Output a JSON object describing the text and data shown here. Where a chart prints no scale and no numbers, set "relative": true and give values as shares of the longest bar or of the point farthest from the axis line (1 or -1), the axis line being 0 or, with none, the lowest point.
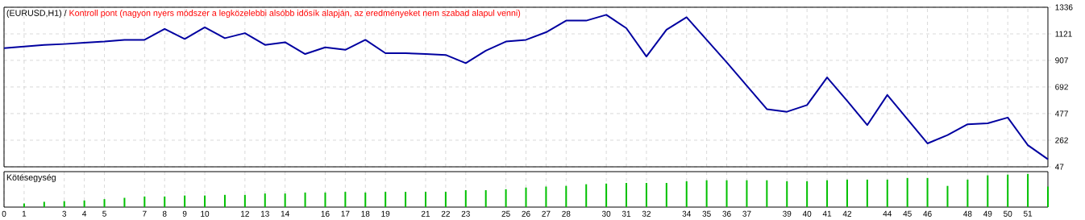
{
  "chart_data": [
    {
      "type": "line",
      "title": "(EURUSD,H1) /",
      "subtitle": "Kontroll pont (nagyon nyers módszer a legközelebbi alsóbb idősík alapján, az eredményeket nem szabad alapul venni)",
      "x": [
        0,
        1,
        2,
        3,
        4,
        5,
        6,
        7,
        8,
        9,
        10,
        11,
        12,
        13,
        14,
        15,
        16,
        17,
        18,
        19,
        20,
        21,
        22,
        23,
        24,
        25,
        26,
        27,
        28,
        29,
        30,
        31,
        32,
        33,
        34,
        35,
        36,
        37,
        38,
        39,
        40,
        41,
        42,
        43,
        44,
        45,
        46,
        47,
        48,
        49,
        50,
        51,
        52
      ],
      "series": [
        {
          "color": "#0000a0",
          "values": [
            1005,
            1019,
            1032,
            1039,
            1049,
            1059,
            1073,
            1073,
            1161,
            1080,
            1174,
            1086,
            1127,
            1032,
            1053,
            958,
            1012,
            992,
            1073,
            965,
            965,
            958,
            951,
            884,
            985,
            1059,
            1073,
            1134,
            1228,
            1228,
            1275,
            1167,
            938,
            1154,
            1255,
            1073,
            891,
            702,
            513,
            492,
            546,
            769,
            580,
            384,
            627,
            432,
            236,
            303,
            391,
            398,
            445,
            222,
            108
          ]
        }
      ],
      "xlim": [
        0,
        52
      ],
      "xticks": [
        0,
        1,
        3,
        4,
        5,
        7,
        8,
        9,
        10,
        12,
        13,
        14,
        16,
        17,
        18,
        19,
        21,
        22,
        23,
        25,
        26,
        27,
        28,
        30,
        31,
        32,
        34,
        35,
        36,
        37,
        39,
        40,
        41,
        42,
        44,
        45,
        46,
        48,
        49,
        50,
        51
      ],
      "ylim": [
        47,
        1336
      ],
      "yticks": [
        47,
        262,
        477,
        692,
        907,
        1121,
        1336
      ],
      "grid": true,
      "tick_labels": "y",
      "marker": "none",
      "line_style": "solid"
    },
    {
      "type": "bar",
      "title": "Kötésegység",
      "relative": true,
      "x": [
        1,
        2,
        3,
        4,
        5,
        6,
        7,
        8,
        9,
        10,
        11,
        12,
        13,
        14,
        15,
        16,
        17,
        18,
        19,
        20,
        21,
        22,
        23,
        24,
        25,
        26,
        27,
        28,
        29,
        30,
        31,
        32,
        33,
        34,
        35,
        36,
        37,
        38,
        39,
        40,
        41,
        42,
        43,
        44,
        45,
        46,
        47,
        48,
        49,
        50,
        51,
        52
      ],
      "series": [
        {
          "color": "#00c000",
          "values": [
            0.11,
            0.16,
            0.18,
            0.2,
            0.24,
            0.28,
            0.32,
            0.32,
            0.35,
            0.35,
            0.37,
            0.37,
            0.41,
            0.41,
            0.44,
            0.44,
            0.46,
            0.44,
            0.46,
            0.46,
            0.46,
            0.46,
            0.51,
            0.51,
            0.54,
            0.59,
            0.62,
            0.64,
            0.69,
            0.71,
            0.73,
            0.73,
            0.73,
            0.78,
            0.81,
            0.81,
            0.81,
            0.81,
            0.78,
            0.78,
            0.81,
            0.83,
            0.83,
            0.83,
            0.88,
            0.88,
            0.64,
            0.83,
            0.96,
            0.98,
            1,
            0.62
          ]
        }
      ],
      "xlim": [
        0,
        52
      ],
      "xticks": [
        0,
        1,
        3,
        4,
        5,
        7,
        8,
        9,
        10,
        12,
        13,
        14,
        16,
        17,
        18,
        19,
        21,
        22,
        23,
        25,
        26,
        27,
        28,
        30,
        31,
        32,
        34,
        35,
        36,
        37,
        39,
        40,
        41,
        42,
        44,
        45,
        46,
        48,
        49,
        50,
        51
      ],
      "grid": "x",
      "tick_labels": "x"
    }
  ]
}
